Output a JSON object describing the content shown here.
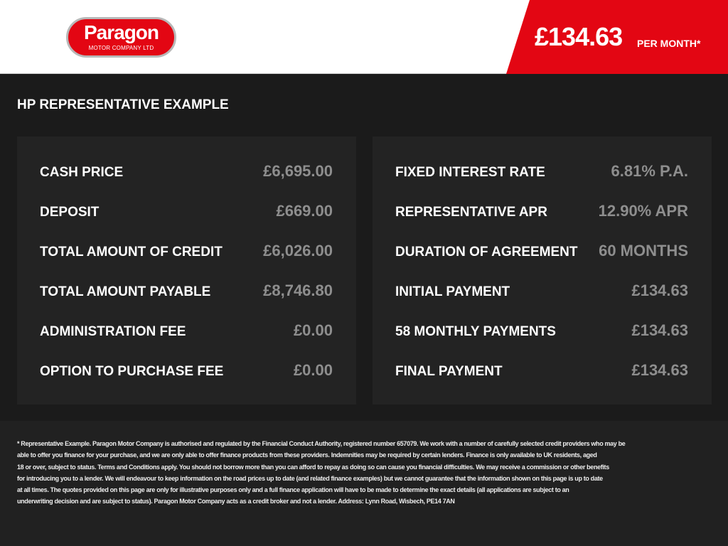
{
  "header": {
    "logo_name": "Paragon",
    "logo_sub": "MOTOR COMPANY LTD",
    "monthly_price": "£134.63",
    "per_month": "PER MONTH*",
    "brand_color": "#e30613"
  },
  "heading": "HP REPRESENTATIVE EXAMPLE",
  "left_rows": [
    {
      "label": "CASH PRICE",
      "value": "£6,695.00"
    },
    {
      "label": "DEPOSIT",
      "value": "£669.00"
    },
    {
      "label": "TOTAL AMOUNT OF CREDIT",
      "value": "£6,026.00"
    },
    {
      "label": "TOTAL AMOUNT PAYABLE",
      "value": "£8,746.80"
    },
    {
      "label": "ADMINISTRATION FEE",
      "value": "£0.00"
    },
    {
      "label": "OPTION TO PURCHASE FEE",
      "value": "£0.00"
    }
  ],
  "right_rows": [
    {
      "label": "FIXED INTEREST RATE",
      "value": "6.81% P.A."
    },
    {
      "label": "REPRESENTATIVE APR",
      "value": "12.90% APR"
    },
    {
      "label": "DURATION OF AGREEMENT",
      "value": "60 MONTHS"
    },
    {
      "label": "INITIAL PAYMENT",
      "value": "£134.63"
    },
    {
      "label": "58 MONTHLY PAYMENTS",
      "value": "£134.63"
    },
    {
      "label": "FINAL PAYMENT",
      "value": "£134.63"
    }
  ],
  "disclaimer_lines": [
    "* Representative Example. Paragon Motor Company is authorised and regulated by the Financial Conduct Authority, registered number 657079. We work with a number of carefully selected credit providers who may be",
    "able to offer you finance for your purchase, and we are only able to offer finance products from these providers. Indemnities may be required by certain lenders. Finance is only available to UK residents, aged",
    "18 or over, subject to status. Terms and Conditions apply. You should not borrow more than you can afford to repay as doing so can cause you financial difficulties. We may receive a commission or other benefits",
    "for introducing you to a lender. We will endeavour to keep information on the road prices up to date (and related finance examples) but we cannot guarantee that the information shown on this page is up to date",
    "at all times. The quotes provided on this page are only for illustrative purposes only and a full finance application will have to be made to determine the exact details (all applications are subject to an",
    "underwriting decision and are subject to status). Paragon Motor Company acts as a credit broker and not a lender. Address: Lynn Road, Wisbech, PE14 7AN"
  ]
}
